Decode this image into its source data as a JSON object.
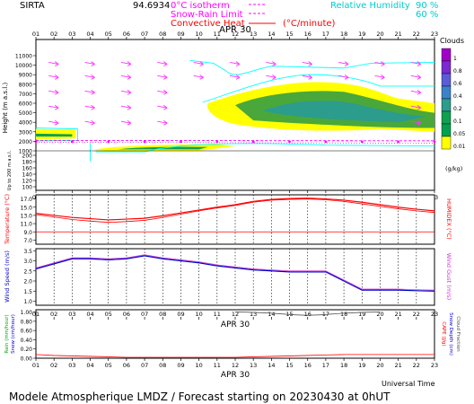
{
  "header": {
    "station": "SIRTA",
    "coord": "94.6934",
    "legend_isotherm": "0°C isotherm",
    "legend_snow": "Snow-Rain Limit",
    "legend_convective": "Convective Heat",
    "legend_unit": "(°C/minute)",
    "rh_label": "Relative Humidity",
    "rh_90": "90 %",
    "rh_60": "60 %"
  },
  "footer": {
    "caption": "Modele Atmospherique LMDZ / Forecast starting on 20230430 at 0hUT",
    "universal_time": "Universal Time"
  },
  "colors": {
    "isotherm": "#ff00ff",
    "rh": "#00ffff",
    "temp": "#ff0000",
    "wind": "#0000cc",
    "cloud_light": "#ffff00",
    "cloud_mid": "#00a050",
    "rain": "#ff0000"
  },
  "chart_data": [
    {
      "type": "heatmap",
      "title": "APR 30",
      "ylabel": "Height (m a.s.l.)",
      "ylabel2": "Up to 200 m a.s.l.",
      "x_ticks": [
        "01",
        "02",
        "03",
        "04",
        "05",
        "06",
        "07",
        "08",
        "09",
        "10",
        "11",
        "12",
        "13",
        "14",
        "15",
        "16",
        "17",
        "18",
        "19",
        "20",
        "21",
        "22",
        "23"
      ],
      "y_ticks_top": [
        "11000",
        "10000",
        "9000",
        "8000",
        "7000",
        "6000",
        "5000",
        "4000",
        "3000",
        "2000",
        "1000"
      ],
      "y_ticks_bottom": [
        "200",
        "180",
        "160",
        "140",
        "120",
        "100"
      ],
      "legend_title": "Clouds",
      "legend_levels": [
        "1",
        "0.8",
        "0.6",
        "0.4",
        "0.2",
        "0.1",
        "0.05",
        "0.01"
      ],
      "legend_unit": "(g/kg)",
      "legend_colors": [
        "#a000c8",
        "#7a2ad0",
        "#5a5cd8",
        "#3c82c8",
        "#2c9c8c",
        "#10a050",
        "#00a050",
        "#ffff00"
      ],
      "rh_contours": [
        "60",
        "90"
      ]
    },
    {
      "type": "line",
      "title": "APR 30",
      "ylabel": "Temperature (°C)",
      "ylabel_right": "HUMIDEX (°C)",
      "y_ticks": [
        "17.0",
        "15.0",
        "13.0",
        "11.0",
        "9.0",
        "7.0"
      ],
      "ylim": [
        6,
        18
      ],
      "x": [
        "01",
        "02",
        "03",
        "04",
        "05",
        "06",
        "07",
        "08",
        "09",
        "10",
        "11",
        "12",
        "13",
        "14",
        "15",
        "16",
        "17",
        "18",
        "19",
        "20",
        "21",
        "22",
        "23"
      ],
      "series": [
        {
          "values": [
            13.5,
            13.0,
            12.5,
            12.2,
            11.9,
            12.1,
            12.3,
            12.9,
            13.6,
            14.3,
            15.0,
            15.6,
            16.4,
            16.9,
            17.1,
            17.2,
            17.0,
            16.7,
            16.2,
            15.6,
            15.0,
            14.5,
            14.1
          ]
        },
        {
          "values": [
            13.2,
            12.6,
            12.0,
            11.6,
            11.3,
            11.5,
            11.8,
            12.5,
            13.3,
            14.1,
            14.8,
            15.4,
            16.2,
            16.7,
            16.9,
            17.0,
            16.8,
            16.4,
            15.8,
            15.2,
            14.6,
            14.1,
            13.7
          ]
        }
      ],
      "ref_line": 9.0
    },
    {
      "type": "line",
      "ylabel": "Wind Speed (m/s)",
      "ylabel_right": "Wind Gust (m/s)",
      "y_ticks": [
        "3.5",
        "3.0",
        "2.5",
        "2.0",
        "1.5",
        "1.0"
      ],
      "ylim": [
        0.8,
        3.6
      ],
      "x": [
        "01",
        "02",
        "03",
        "04",
        "05",
        "06",
        "07",
        "08",
        "09",
        "10",
        "11",
        "12",
        "13",
        "14",
        "15",
        "16",
        "17",
        "18",
        "19",
        "20",
        "21",
        "22",
        "23"
      ],
      "series": [
        {
          "values": [
            2.6,
            2.85,
            3.1,
            3.1,
            3.05,
            3.1,
            3.25,
            3.1,
            3.0,
            2.9,
            2.75,
            2.65,
            2.55,
            2.5,
            2.45,
            2.45,
            2.45,
            2.0,
            1.55,
            1.55,
            1.55,
            1.52,
            1.5
          ]
        }
      ]
    },
    {
      "type": "line",
      "title": "APR 30",
      "ylabel": "Rain (mm/hour)",
      "ylabel2": "Snow (cm/hour)",
      "ylabel_right": "CAPE (J/g)",
      "ylabel_right2": "Snow Depth (cm)",
      "ylabel_right3": "Cloud Fraction",
      "y_ticks": [
        "1.00",
        "0.80",
        "0.60",
        "0.40",
        "0.20",
        "0.00"
      ],
      "ylim": [
        0,
        1.05
      ],
      "x": [
        "01",
        "02",
        "03",
        "04",
        "05",
        "06",
        "07",
        "08",
        "09",
        "10",
        "11",
        "12",
        "13",
        "14",
        "15",
        "16",
        "17",
        "18",
        "19",
        "20",
        "21",
        "22",
        "23"
      ],
      "series": [
        {
          "values": [
            0.08,
            0.06,
            0.05,
            0.04,
            0.03,
            0.02,
            0.02,
            0.02,
            0.02,
            0.02,
            0.02,
            0.02,
            0.03,
            0.04,
            0.05,
            0.06,
            0.07,
            0.08,
            0.08,
            0.08,
            0.08,
            0.08,
            0.08
          ]
        }
      ]
    }
  ]
}
